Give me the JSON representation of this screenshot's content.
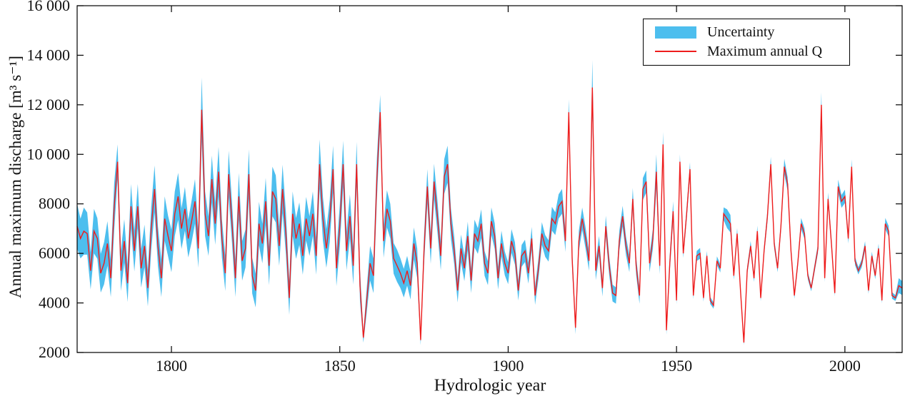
{
  "figure": {
    "xlabel": "Hydrologic year",
    "ylabel": "Annual maximum discharge [m³ s⁻¹]"
  },
  "chart_data": {
    "type": "line",
    "title": "",
    "xlabel": "Hydrologic year",
    "ylabel": "Annual maximum discharge [m³ s⁻¹]",
    "xlim": [
      1772,
      2017
    ],
    "ylim": [
      2000,
      16000
    ],
    "x_ticks": [
      1800,
      1850,
      1900,
      1950,
      2000
    ],
    "y_ticks": [
      2000,
      4000,
      6000,
      8000,
      10000,
      12000,
      14000,
      16000
    ],
    "y_tick_labels": [
      "2000",
      "4000",
      "6000",
      "8000",
      "10 000",
      "12 000",
      "14 000",
      "16 000"
    ],
    "grid": false,
    "colors": {
      "band": "#4dbeee",
      "line": "#ee1c1c",
      "axis": "#000000"
    },
    "legend": {
      "position": "top-right",
      "entries": [
        {
          "label": "Uncertainty",
          "type": "patch",
          "color": "#4dbeee"
        },
        {
          "label": "Maximum annual Q",
          "type": "line",
          "color": "#ee1c1c"
        }
      ]
    },
    "series": {
      "x_start": 1772,
      "x_step": 1,
      "max_annual_q": [
        7100,
        6600,
        6900,
        6800,
        5300,
        6900,
        6600,
        5200,
        5600,
        6400,
        5000,
        7900,
        9700,
        5300,
        6500,
        4800,
        7900,
        6100,
        7900,
        5400,
        6300,
        4600,
        7000,
        8600,
        6300,
        5000,
        7400,
        6700,
        6100,
        7600,
        8300,
        7000,
        7800,
        6600,
        7300,
        8100,
        6200,
        11800,
        7600,
        6700,
        9000,
        7200,
        9300,
        6600,
        5200,
        9200,
        7200,
        5000,
        8300,
        5700,
        6200,
        9200,
        5100,
        4500,
        7200,
        6400,
        8100,
        5500,
        8500,
        8200,
        6300,
        8600,
        6800,
        4200,
        7600,
        6600,
        7200,
        5900,
        7400,
        6700,
        7600,
        5900,
        9600,
        7400,
        6200,
        7300,
        9400,
        5400,
        7100,
        9600,
        6100,
        7500,
        5500,
        9600,
        4700,
        2600,
        4100,
        5600,
        5100,
        9000,
        11700,
        6500,
        7800,
        7300,
        5800,
        5500,
        5200,
        4800,
        5300,
        4700,
        6400,
        5600,
        2500,
        6100,
        8700,
        6200,
        8900,
        7500,
        5900,
        9100,
        9600,
        7200,
        6100,
        4500,
        6200,
        5400,
        6700,
        4900,
        6800,
        6500,
        7200,
        5600,
        5200,
        7300,
        6700,
        5000,
        6400,
        5600,
        5200,
        6500,
        6000,
        4500,
        5900,
        6100,
        5200,
        6600,
        4300,
        5400,
        6800,
        6300,
        6100,
        7400,
        7200,
        7900,
        8100,
        6500,
        11700,
        5800,
        3000,
        6500,
        7400,
        6600,
        5700,
        12700,
        5300,
        6300,
        4600,
        7100,
        5500,
        4400,
        4300,
        6500,
        7500,
        6300,
        5600,
        8200,
        5500,
        4300,
        8600,
        8900,
        5600,
        6600,
        9300,
        5500,
        10400,
        2900,
        5600,
        7700,
        4100,
        9700,
        6000,
        7600,
        9400,
        4300,
        5900,
        6000,
        4200,
        5900,
        4100,
        3900,
        5700,
        5400,
        7600,
        7400,
        7200,
        5100,
        6800,
        4500,
        2400,
        5300,
        6300,
        5000,
        6900,
        4200,
        6100,
        7500,
        9600,
        6400,
        5400,
        7100,
        9500,
        8800,
        6100,
        4300,
        5600,
        7200,
        6800,
        5100,
        4600,
        5400,
        6200,
        12000,
        5000,
        8200,
        6400,
        4400,
        8700,
        8100,
        8300,
        6600,
        9500,
        5700,
        5300,
        5600,
        6300,
        4500,
        5900,
        5100,
        6200,
        4100,
        7200,
        6900,
        4300,
        4200,
        4700,
        4600
      ],
      "uncertainty_halfwidth": [
        900,
        800,
        950,
        850,
        750,
        900,
        820,
        780,
        850,
        900,
        760,
        950,
        700,
        820,
        880,
        760,
        900,
        830,
        900,
        780,
        860,
        740,
        880,
        950,
        800,
        760,
        900,
        820,
        860,
        900,
        950,
        820,
        880,
        760,
        840,
        900,
        780,
        1300,
        900,
        800,
        950,
        850,
        1000,
        780,
        720,
        950,
        820,
        760,
        950,
        800,
        760,
        1000,
        720,
        680,
        880,
        800,
        950,
        780,
        1000,
        950,
        800,
        980,
        850,
        680,
        900,
        820,
        860,
        760,
        880,
        800,
        900,
        760,
        1000,
        880,
        780,
        850,
        950,
        720,
        850,
        950,
        780,
        880,
        760,
        900,
        650,
        200,
        500,
        700,
        700,
        850,
        700,
        680,
        750,
        700,
        620,
        650,
        600,
        580,
        600,
        560,
        650,
        600,
        200,
        580,
        700,
        620,
        720,
        650,
        580,
        700,
        750,
        620,
        560,
        480,
        560,
        520,
        580,
        500,
        560,
        520,
        580,
        500,
        480,
        560,
        520,
        460,
        520,
        480,
        440,
        480,
        450,
        400,
        440,
        450,
        420,
        470,
        380,
        420,
        460,
        440,
        430,
        480,
        460,
        490,
        500,
        440,
        520,
        400,
        260,
        420,
        450,
        430,
        400,
        1100,
        380,
        400,
        340,
        420,
        380,
        340,
        330,
        400,
        420,
        380,
        350,
        440,
        360,
        330,
        440,
        450,
        360,
        400,
        700,
        340,
        500,
        180,
        340,
        400,
        150,
        300,
        180,
        250,
        280,
        140,
        200,
        220,
        150,
        200,
        140,
        130,
        180,
        170,
        260,
        380,
        350,
        160,
        220,
        150,
        100,
        160,
        200,
        150,
        220,
        130,
        180,
        240,
        300,
        200,
        160,
        220,
        320,
        280,
        190,
        130,
        170,
        230,
        210,
        150,
        130,
        160,
        190,
        500,
        150,
        260,
        200,
        130,
        280,
        260,
        270,
        200,
        300,
        170,
        150,
        160,
        190,
        130,
        170,
        140,
        190,
        120,
        230,
        210,
        130,
        120,
        300,
        280
      ]
    }
  }
}
